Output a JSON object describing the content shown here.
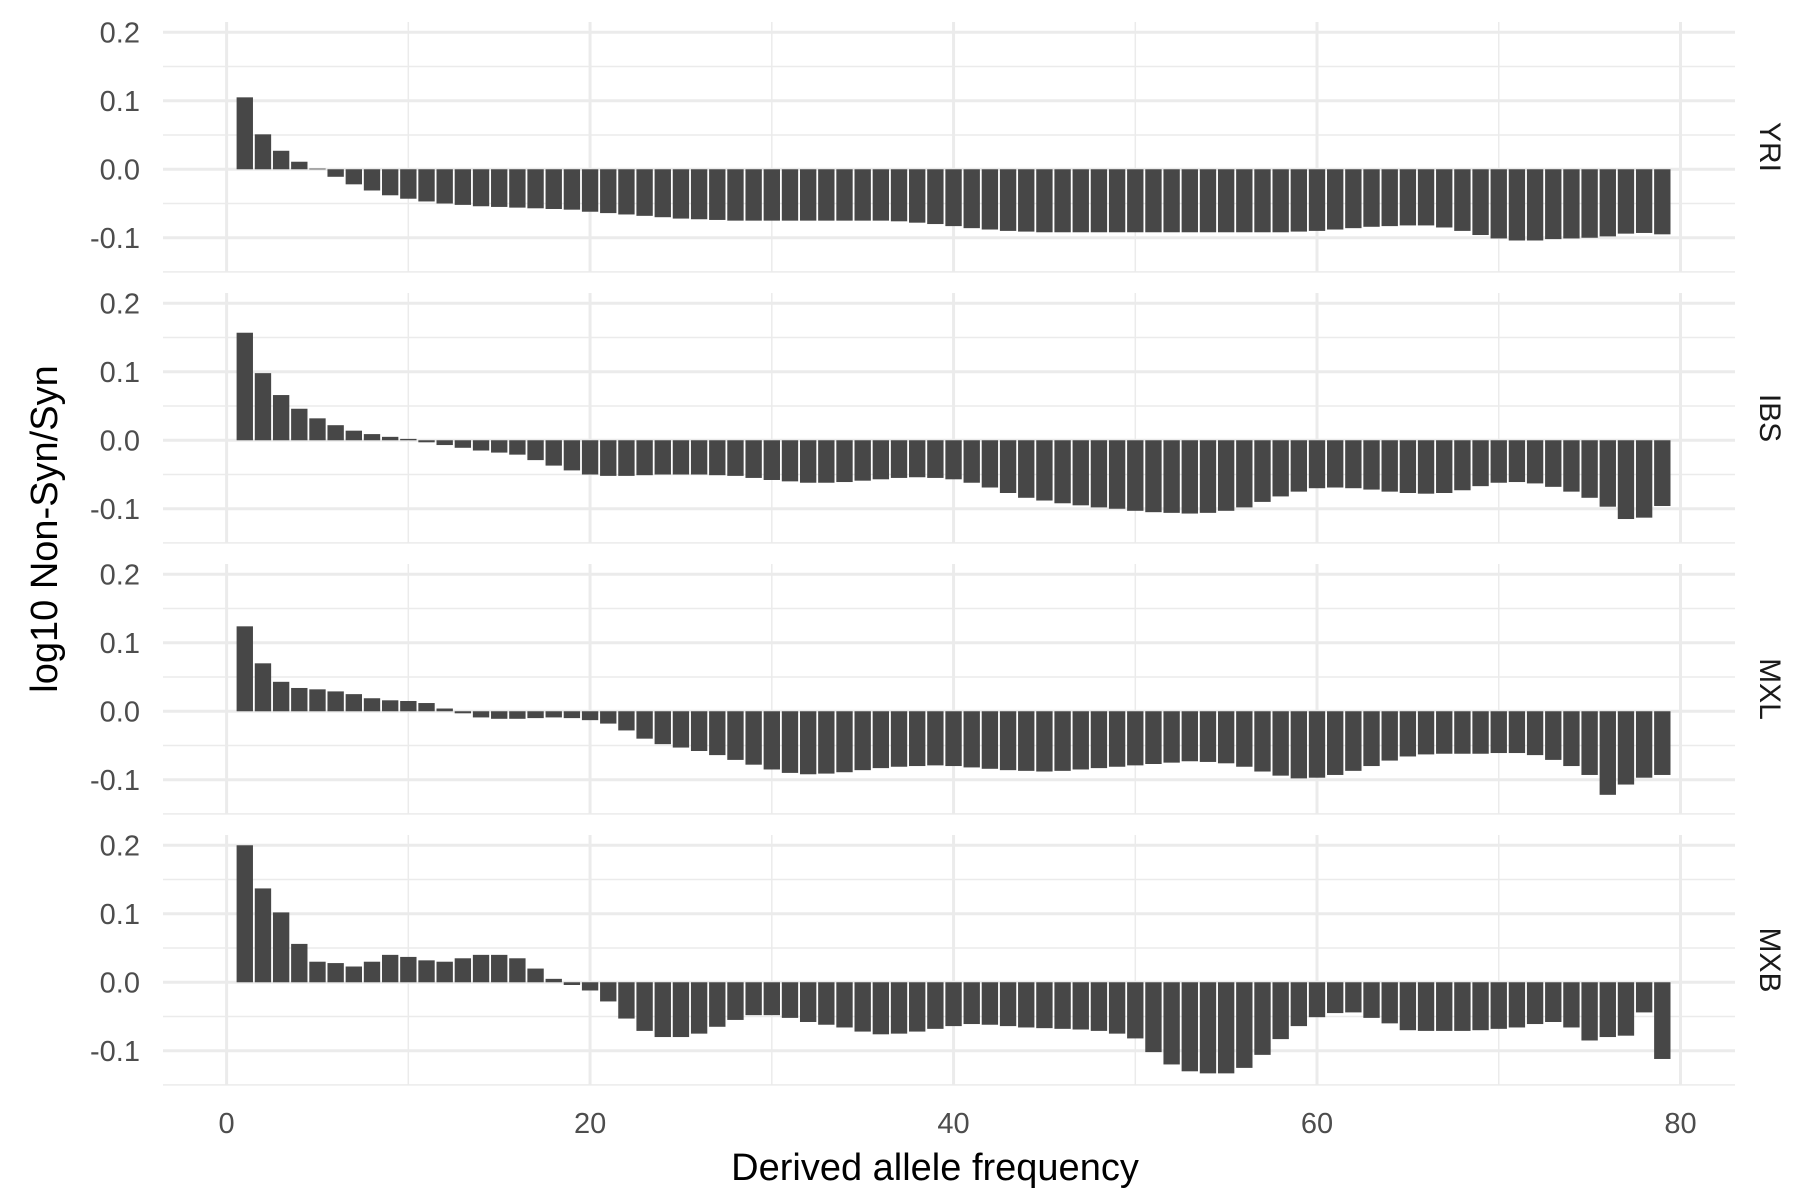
{
  "chart_data": {
    "type": "bar",
    "layout": "faceted",
    "xlabel": "Derived allele frequency",
    "ylabel": "log10 Non-Syn/Syn",
    "x": [
      1,
      2,
      3,
      4,
      5,
      6,
      7,
      8,
      9,
      10,
      11,
      12,
      13,
      14,
      15,
      16,
      17,
      18,
      19,
      20,
      21,
      22,
      23,
      24,
      25,
      26,
      27,
      28,
      29,
      30,
      31,
      32,
      33,
      34,
      35,
      36,
      37,
      38,
      39,
      40,
      41,
      42,
      43,
      44,
      45,
      46,
      47,
      48,
      49,
      50,
      51,
      52,
      53,
      54,
      55,
      56,
      57,
      58,
      59,
      60,
      61,
      62,
      63,
      64,
      65,
      66,
      67,
      68,
      69,
      70,
      71,
      72,
      73,
      74,
      75,
      76,
      77,
      78,
      79
    ],
    "xticks": [
      "0",
      "20",
      "40",
      "60",
      "80"
    ],
    "xlim": [
      -3.5,
      83
    ],
    "yticks": [
      "-0.1",
      "0.0",
      "0.1",
      "0.2"
    ],
    "ylim": [
      -0.15,
      0.215
    ],
    "grid": true,
    "bar_color": "#474747",
    "series": [
      {
        "name": "YRI",
        "values": [
          0.105,
          0.051,
          0.027,
          0.011,
          0.001,
          -0.011,
          -0.022,
          -0.031,
          -0.038,
          -0.043,
          -0.047,
          -0.05,
          -0.052,
          -0.054,
          -0.055,
          -0.056,
          -0.057,
          -0.058,
          -0.059,
          -0.062,
          -0.064,
          -0.066,
          -0.068,
          -0.07,
          -0.072,
          -0.073,
          -0.074,
          -0.075,
          -0.075,
          -0.075,
          -0.075,
          -0.075,
          -0.075,
          -0.075,
          -0.075,
          -0.075,
          -0.076,
          -0.078,
          -0.08,
          -0.083,
          -0.086,
          -0.088,
          -0.09,
          -0.091,
          -0.092,
          -0.092,
          -0.092,
          -0.092,
          -0.092,
          -0.092,
          -0.092,
          -0.092,
          -0.092,
          -0.092,
          -0.092,
          -0.092,
          -0.092,
          -0.092,
          -0.091,
          -0.09,
          -0.088,
          -0.086,
          -0.084,
          -0.083,
          -0.082,
          -0.082,
          -0.085,
          -0.09,
          -0.096,
          -0.101,
          -0.104,
          -0.104,
          -0.102,
          -0.101,
          -0.1,
          -0.098,
          -0.094,
          -0.093,
          -0.095
        ]
      },
      {
        "name": "IBS",
        "values": [
          0.157,
          0.098,
          0.066,
          0.046,
          0.032,
          0.022,
          0.014,
          0.009,
          0.005,
          0.002,
          -0.003,
          -0.007,
          -0.011,
          -0.015,
          -0.018,
          -0.021,
          -0.029,
          -0.037,
          -0.044,
          -0.05,
          -0.052,
          -0.052,
          -0.051,
          -0.05,
          -0.05,
          -0.05,
          -0.051,
          -0.052,
          -0.055,
          -0.058,
          -0.06,
          -0.062,
          -0.062,
          -0.061,
          -0.059,
          -0.057,
          -0.055,
          -0.054,
          -0.055,
          -0.057,
          -0.062,
          -0.069,
          -0.077,
          -0.084,
          -0.088,
          -0.092,
          -0.095,
          -0.098,
          -0.1,
          -0.103,
          -0.105,
          -0.106,
          -0.107,
          -0.106,
          -0.103,
          -0.098,
          -0.09,
          -0.082,
          -0.075,
          -0.07,
          -0.069,
          -0.07,
          -0.072,
          -0.075,
          -0.077,
          -0.078,
          -0.077,
          -0.073,
          -0.067,
          -0.062,
          -0.061,
          -0.063,
          -0.068,
          -0.075,
          -0.084,
          -0.097,
          -0.115,
          -0.113,
          -0.096
        ]
      },
      {
        "name": "MXL",
        "values": [
          0.124,
          0.07,
          0.043,
          0.034,
          0.032,
          0.029,
          0.025,
          0.019,
          0.016,
          0.015,
          0.012,
          0.004,
          -0.003,
          -0.009,
          -0.011,
          -0.011,
          -0.01,
          -0.009,
          -0.01,
          -0.013,
          -0.018,
          -0.028,
          -0.04,
          -0.048,
          -0.053,
          -0.058,
          -0.064,
          -0.071,
          -0.078,
          -0.085,
          -0.09,
          -0.092,
          -0.091,
          -0.089,
          -0.086,
          -0.083,
          -0.081,
          -0.08,
          -0.079,
          -0.08,
          -0.082,
          -0.084,
          -0.086,
          -0.087,
          -0.088,
          -0.087,
          -0.085,
          -0.083,
          -0.081,
          -0.079,
          -0.077,
          -0.075,
          -0.073,
          -0.074,
          -0.076,
          -0.081,
          -0.088,
          -0.094,
          -0.098,
          -0.097,
          -0.093,
          -0.087,
          -0.08,
          -0.072,
          -0.066,
          -0.063,
          -0.062,
          -0.062,
          -0.062,
          -0.061,
          -0.061,
          -0.064,
          -0.071,
          -0.08,
          -0.093,
          -0.122,
          -0.107,
          -0.097,
          -0.093
        ]
      },
      {
        "name": "MXB",
        "values": [
          0.2,
          0.137,
          0.102,
          0.056,
          0.03,
          0.028,
          0.023,
          0.03,
          0.04,
          0.037,
          0.032,
          0.03,
          0.035,
          0.04,
          0.04,
          0.035,
          0.02,
          0.005,
          -0.004,
          -0.012,
          -0.028,
          -0.053,
          -0.071,
          -0.08,
          -0.08,
          -0.075,
          -0.065,
          -0.055,
          -0.048,
          -0.048,
          -0.052,
          -0.058,
          -0.062,
          -0.066,
          -0.072,
          -0.076,
          -0.075,
          -0.072,
          -0.068,
          -0.064,
          -0.061,
          -0.062,
          -0.064,
          -0.066,
          -0.067,
          -0.068,
          -0.069,
          -0.071,
          -0.075,
          -0.082,
          -0.102,
          -0.12,
          -0.13,
          -0.133,
          -0.133,
          -0.125,
          -0.106,
          -0.083,
          -0.064,
          -0.051,
          -0.045,
          -0.044,
          -0.052,
          -0.06,
          -0.07,
          -0.071,
          -0.071,
          -0.071,
          -0.07,
          -0.068,
          -0.066,
          -0.061,
          -0.058,
          -0.066,
          -0.085,
          -0.08,
          -0.078,
          -0.044,
          -0.112
        ]
      }
    ]
  }
}
